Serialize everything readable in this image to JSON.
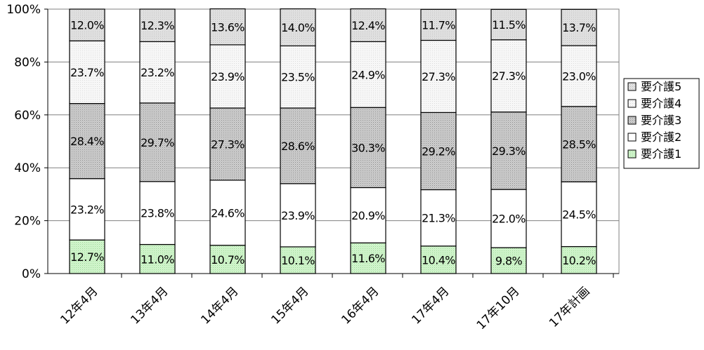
{
  "chart_data": {
    "type": "bar",
    "stacked": true,
    "percent": true,
    "categories": [
      "12年4月",
      "13年4月",
      "14年4月",
      "15年4月",
      "16年4月",
      "17年4月",
      "17年10月",
      "17年計画"
    ],
    "series": [
      {
        "name": "要介護1",
        "values": [
          12.7,
          11.0,
          10.7,
          10.1,
          11.6,
          10.4,
          9.8,
          10.2
        ],
        "labels": [
          "12.7%",
          "11.0%",
          "10.7%",
          "10.1%",
          "11.6%",
          "10.4%",
          "9.8%",
          "10.2%"
        ],
        "fill": "pattern-green"
      },
      {
        "name": "要介護2",
        "values": [
          23.2,
          23.8,
          24.6,
          23.9,
          20.9,
          21.3,
          22.0,
          24.5
        ],
        "labels": [
          "23.2%",
          "23.8%",
          "24.6%",
          "23.9%",
          "20.9%",
          "21.3%",
          "22.0%",
          "24.5%"
        ],
        "fill": "white"
      },
      {
        "name": "要介護3",
        "values": [
          28.4,
          29.7,
          27.3,
          28.6,
          30.3,
          29.2,
          29.3,
          28.5
        ],
        "labels": [
          "28.4%",
          "29.7%",
          "27.3%",
          "28.6%",
          "30.3%",
          "29.2%",
          "29.3%",
          "28.5%"
        ],
        "fill": "pattern-gray"
      },
      {
        "name": "要介護4",
        "values": [
          23.7,
          23.2,
          23.9,
          23.5,
          24.9,
          27.3,
          27.3,
          23.0
        ],
        "labels": [
          "23.7%",
          "23.2%",
          "23.9%",
          "23.5%",
          "24.9%",
          "27.3%",
          "27.3%",
          "23.0%"
        ],
        "fill": "pattern-light"
      },
      {
        "name": "要介護5",
        "values": [
          12.0,
          12.3,
          13.6,
          14.0,
          12.4,
          11.7,
          11.5,
          13.7
        ],
        "labels": [
          "12.0%",
          "12.3%",
          "13.6%",
          "14.0%",
          "12.4%",
          "11.7%",
          "11.5%",
          "13.7%"
        ],
        "fill": "pattern-mid"
      }
    ],
    "y_ticks": [
      "0%",
      "20%",
      "40%",
      "60%",
      "80%",
      "100%"
    ],
    "ylim": [
      0,
      100
    ],
    "grid": true,
    "legend_position": "right",
    "legend_order": [
      "要介護5",
      "要介護4",
      "要介護3",
      "要介護2",
      "要介護1"
    ],
    "title": "",
    "xlabel": "",
    "ylabel": ""
  }
}
